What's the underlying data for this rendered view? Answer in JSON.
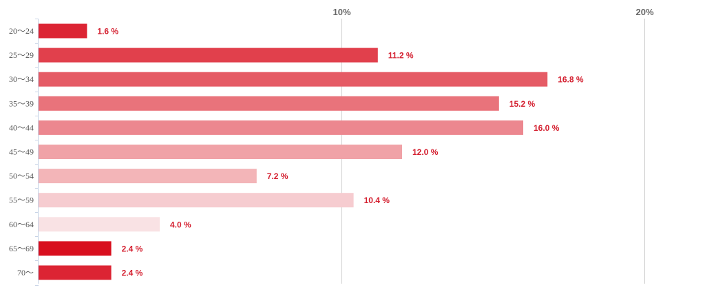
{
  "chart_data": {
    "type": "bar",
    "orientation": "horizontal",
    "categories": [
      "20〜24",
      "25〜29",
      "30〜34",
      "35〜39",
      "40〜44",
      "45〜49",
      "50〜54",
      "55〜59",
      "60〜64",
      "65〜69",
      "70〜"
    ],
    "values": [
      1.6,
      11.2,
      16.8,
      15.2,
      16.0,
      12.0,
      7.2,
      10.4,
      4.0,
      2.4,
      2.4
    ],
    "value_labels": [
      "1.6 %",
      "11.2 %",
      "16.8 %",
      "15.2 %",
      "16.0 %",
      "12.0 %",
      "7.2 %",
      "10.4 %",
      "4.0 %",
      "2.4 %",
      "2.4 %"
    ],
    "bar_colors": [
      "#dc2433",
      "#e1404c",
      "#e55b65",
      "#e9737b",
      "#ec878f",
      "#f0a2a7",
      "#f3b5b8",
      "#f6ccd0",
      "#f9e2e4",
      "#d80f1e",
      "#dc2433"
    ],
    "xticks": [
      {
        "value": 10,
        "label": "10%"
      },
      {
        "value": 20,
        "label": "20%"
      }
    ],
    "xlim": [
      0,
      20
    ],
    "grid": true,
    "title": "",
    "xlabel": "",
    "ylabel": ""
  }
}
